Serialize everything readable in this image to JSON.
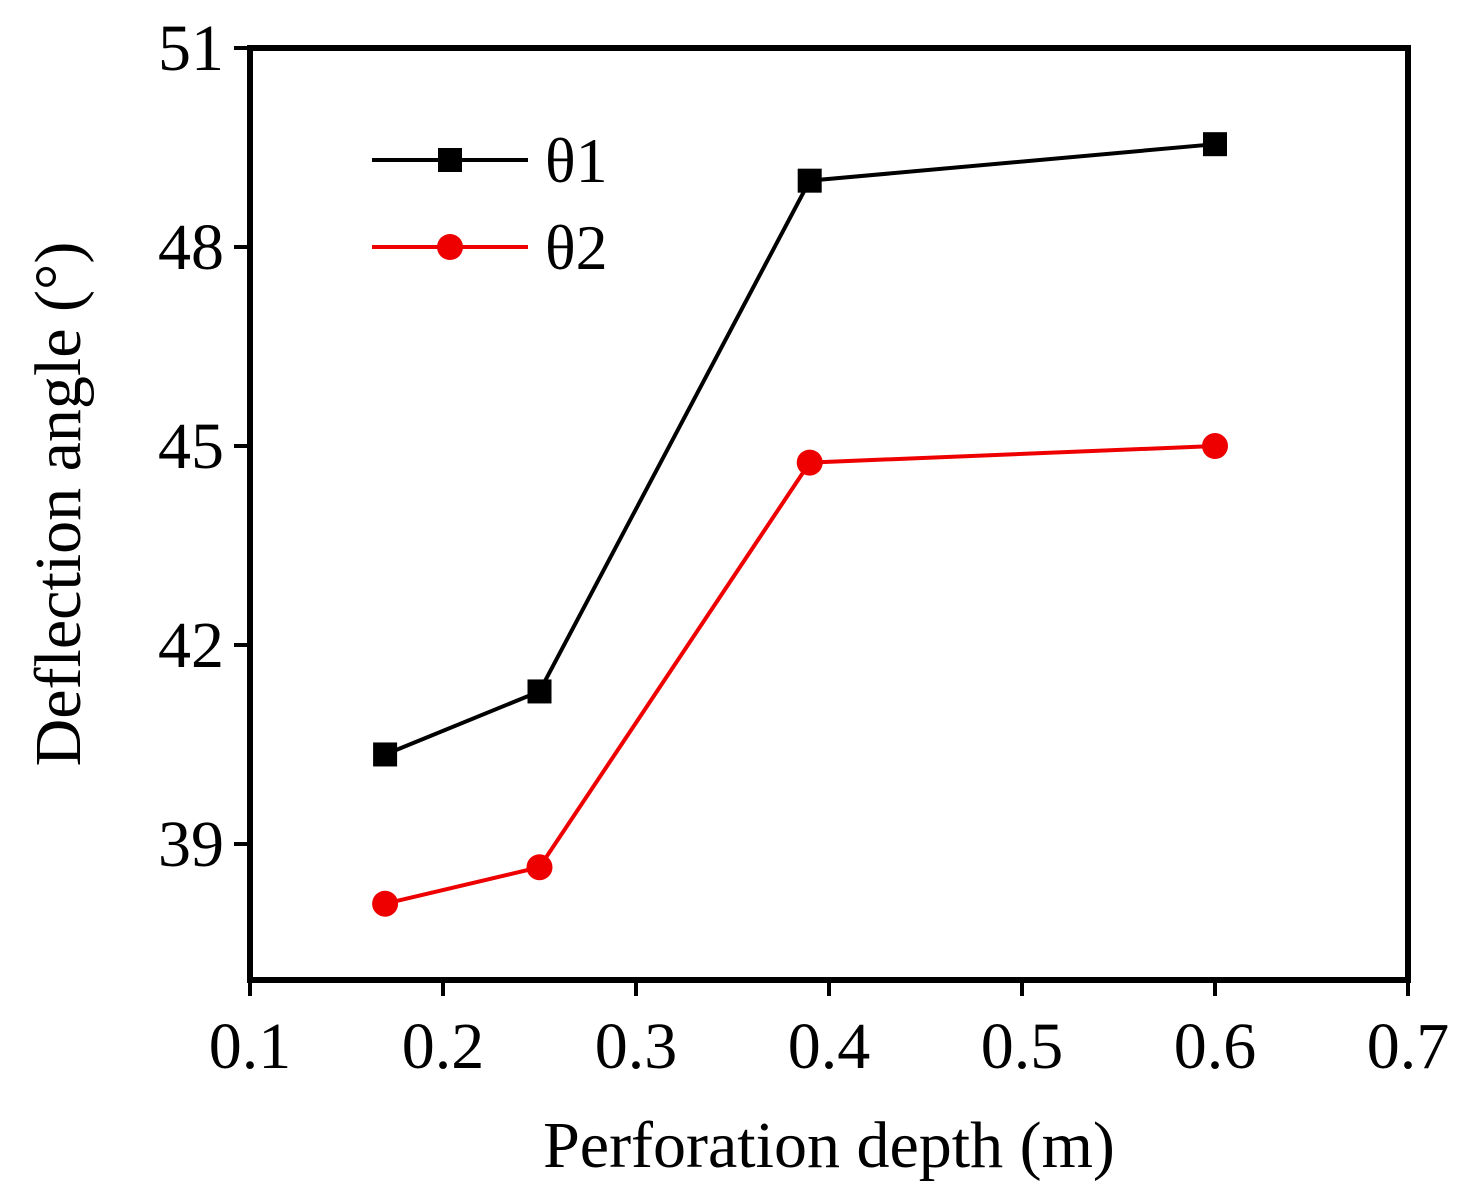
{
  "chart_data": {
    "type": "line",
    "title": "",
    "xlabel": "Perforation depth (m)",
    "ylabel": "Deflection angle (°)",
    "xlim": [
      0.1,
      0.7
    ],
    "ylim": [
      36.95,
      51
    ],
    "xticks": [
      0.1,
      0.2,
      0.3,
      0.4,
      0.5,
      0.6,
      0.7
    ],
    "yticks": [
      39,
      42,
      45,
      48,
      51
    ],
    "x_tick_labels": [
      "0.1",
      "0.2",
      "0.3",
      "0.4",
      "0.5",
      "0.6",
      "0.7"
    ],
    "y_tick_labels": [
      "39",
      "42",
      "45",
      "48",
      "51"
    ],
    "grid": false,
    "legend_position": "top-left",
    "series": [
      {
        "name": "θ1",
        "color": "#000000",
        "marker": "square",
        "x": [
          0.17,
          0.25,
          0.39,
          0.6
        ],
        "y": [
          40.35,
          41.3,
          49.0,
          49.55
        ]
      },
      {
        "name": "θ2",
        "color": "#ee0000",
        "marker": "circle",
        "x": [
          0.17,
          0.25,
          0.39,
          0.6
        ],
        "y": [
          38.1,
          38.65,
          44.75,
          45.0
        ]
      }
    ]
  }
}
